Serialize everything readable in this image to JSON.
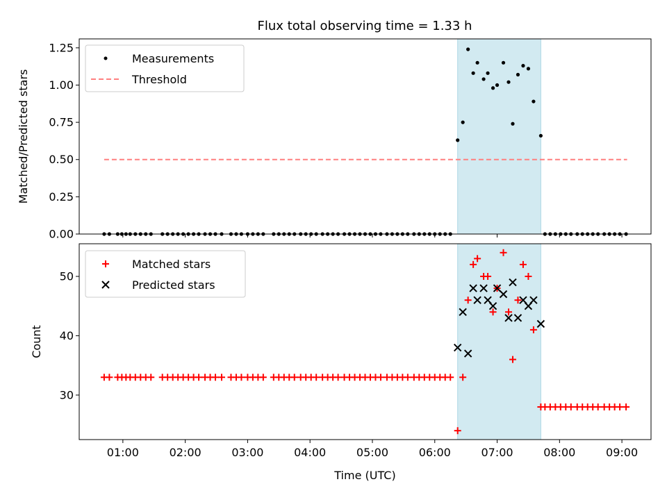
{
  "title": "Flux total observing time = 1.33 h",
  "colors": {
    "measurement": "#000000",
    "threshold": "#ff7f7f",
    "matched": "#ff0000",
    "predicted": "#000000",
    "highlight": "#add8e6"
  },
  "chart_data": [
    {
      "type": "scatter",
      "ylabel": "Matched/Predicted stars",
      "ylim": [
        0,
        1.31
      ],
      "yticks": [
        {
          "v": 0,
          "label": "0.00"
        },
        {
          "v": 0.25,
          "label": "0.25"
        },
        {
          "v": 0.5,
          "label": "0.50"
        },
        {
          "v": 0.75,
          "label": "0.75"
        },
        {
          "v": 1.0,
          "label": "1.00"
        },
        {
          "v": 1.25,
          "label": "1.25"
        }
      ],
      "legend": {
        "position": "top-left",
        "items": [
          {
            "label": "Measurements",
            "marker": "dot"
          },
          {
            "label": "Threshold",
            "marker": "dashed-line"
          }
        ]
      },
      "threshold": {
        "name": "Threshold",
        "value": 0.5,
        "x_start": "00:42",
        "x_end": "09:05"
      },
      "highlight_span": {
        "start": "06:22",
        "end": "07:42"
      },
      "series": [
        {
          "name": "Measurements",
          "points": [
            [
              "00:42",
              0
            ],
            [
              "00:47",
              0
            ],
            [
              "00:55",
              0
            ],
            [
              "00:59",
              0
            ],
            [
              "01:03",
              0
            ],
            [
              "01:07",
              0
            ],
            [
              "01:12",
              0
            ],
            [
              "01:17",
              0
            ],
            [
              "01:22",
              0
            ],
            [
              "01:27",
              0
            ],
            [
              "01:38",
              0
            ],
            [
              "01:43",
              0
            ],
            [
              "01:48",
              0
            ],
            [
              "01:53",
              0
            ],
            [
              "01:58",
              0
            ],
            [
              "02:03",
              0
            ],
            [
              "02:08",
              0
            ],
            [
              "02:13",
              0
            ],
            [
              "02:19",
              0
            ],
            [
              "02:24",
              0
            ],
            [
              "02:29",
              0
            ],
            [
              "02:35",
              0
            ],
            [
              "02:44",
              0
            ],
            [
              "02:49",
              0
            ],
            [
              "02:54",
              0
            ],
            [
              "03:00",
              0
            ],
            [
              "03:05",
              0
            ],
            [
              "03:10",
              0
            ],
            [
              "03:15",
              0
            ],
            [
              "03:25",
              0
            ],
            [
              "03:30",
              0
            ],
            [
              "03:35",
              0
            ],
            [
              "03:40",
              0
            ],
            [
              "03:45",
              0
            ],
            [
              "03:51",
              0
            ],
            [
              "03:56",
              0
            ],
            [
              "04:01",
              0
            ],
            [
              "04:06",
              0
            ],
            [
              "04:12",
              0
            ],
            [
              "04:17",
              0
            ],
            [
              "04:22",
              0
            ],
            [
              "04:27",
              0
            ],
            [
              "04:33",
              0
            ],
            [
              "04:38",
              0
            ],
            [
              "04:43",
              0
            ],
            [
              "04:48",
              0
            ],
            [
              "04:53",
              0
            ],
            [
              "04:58",
              0
            ],
            [
              "05:03",
              0
            ],
            [
              "05:08",
              0
            ],
            [
              "05:14",
              0
            ],
            [
              "05:19",
              0
            ],
            [
              "05:24",
              0
            ],
            [
              "05:29",
              0
            ],
            [
              "05:34",
              0
            ],
            [
              "05:40",
              0
            ],
            [
              "05:45",
              0
            ],
            [
              "05:50",
              0
            ],
            [
              "05:55",
              0
            ],
            [
              "06:00",
              0
            ],
            [
              "06:05",
              0
            ],
            [
              "06:10",
              0
            ],
            [
              "06:15",
              0
            ],
            [
              "06:22",
              0.63
            ],
            [
              "06:27",
              0.75
            ],
            [
              "06:32",
              1.24
            ],
            [
              "06:37",
              1.08
            ],
            [
              "06:41",
              1.15
            ],
            [
              "06:47",
              1.04
            ],
            [
              "06:51",
              1.08
            ],
            [
              "06:56",
              0.98
            ],
            [
              "07:00",
              1.0
            ],
            [
              "07:06",
              1.15
            ],
            [
              "07:11",
              1.02
            ],
            [
              "07:15",
              0.74
            ],
            [
              "07:20",
              1.07
            ],
            [
              "07:25",
              1.13
            ],
            [
              "07:30",
              1.11
            ],
            [
              "07:35",
              0.89
            ],
            [
              "07:42",
              0.66
            ],
            [
              "07:46",
              0
            ],
            [
              "07:51",
              0
            ],
            [
              "07:56",
              0
            ],
            [
              "08:01",
              0
            ],
            [
              "08:06",
              0
            ],
            [
              "08:11",
              0
            ],
            [
              "08:17",
              0
            ],
            [
              "08:22",
              0
            ],
            [
              "08:27",
              0
            ],
            [
              "08:32",
              0
            ],
            [
              "08:37",
              0
            ],
            [
              "08:43",
              0
            ],
            [
              "08:48",
              0
            ],
            [
              "08:53",
              0
            ],
            [
              "08:58",
              0
            ],
            [
              "09:04",
              0
            ]
          ]
        }
      ]
    },
    {
      "type": "scatter",
      "ylabel": "Count",
      "xlabel": "Time (UTC)",
      "ylim": [
        22.5,
        55.5
      ],
      "yticks": [
        {
          "v": 30,
          "label": "30"
        },
        {
          "v": 40,
          "label": "40"
        },
        {
          "v": 50,
          "label": "50"
        }
      ],
      "xlim": [
        "00:18",
        "09:28"
      ],
      "xticks": [
        {
          "v": "01:00",
          "label": "01:00"
        },
        {
          "v": "02:00",
          "label": "02:00"
        },
        {
          "v": "03:00",
          "label": "03:00"
        },
        {
          "v": "04:00",
          "label": "04:00"
        },
        {
          "v": "05:00",
          "label": "05:00"
        },
        {
          "v": "06:00",
          "label": "06:00"
        },
        {
          "v": "07:00",
          "label": "07:00"
        },
        {
          "v": "08:00",
          "label": "08:00"
        },
        {
          "v": "09:00",
          "label": "09:00"
        }
      ],
      "legend": {
        "position": "top-left",
        "items": [
          {
            "label": "Matched stars",
            "marker": "plus"
          },
          {
            "label": "Predicted stars",
            "marker": "x"
          }
        ]
      },
      "highlight_span": {
        "start": "06:22",
        "end": "07:42"
      },
      "series": [
        {
          "name": "Matched stars",
          "points": [
            [
              "00:42",
              33
            ],
            [
              "00:47",
              33
            ],
            [
              "00:55",
              33
            ],
            [
              "00:59",
              33
            ],
            [
              "01:03",
              33
            ],
            [
              "01:07",
              33
            ],
            [
              "01:12",
              33
            ],
            [
              "01:17",
              33
            ],
            [
              "01:22",
              33
            ],
            [
              "01:27",
              33
            ],
            [
              "01:38",
              33
            ],
            [
              "01:43",
              33
            ],
            [
              "01:48",
              33
            ],
            [
              "01:53",
              33
            ],
            [
              "01:58",
              33
            ],
            [
              "02:03",
              33
            ],
            [
              "02:08",
              33
            ],
            [
              "02:13",
              33
            ],
            [
              "02:19",
              33
            ],
            [
              "02:24",
              33
            ],
            [
              "02:29",
              33
            ],
            [
              "02:35",
              33
            ],
            [
              "02:44",
              33
            ],
            [
              "02:49",
              33
            ],
            [
              "02:54",
              33
            ],
            [
              "03:00",
              33
            ],
            [
              "03:05",
              33
            ],
            [
              "03:10",
              33
            ],
            [
              "03:15",
              33
            ],
            [
              "03:25",
              33
            ],
            [
              "03:30",
              33
            ],
            [
              "03:35",
              33
            ],
            [
              "03:40",
              33
            ],
            [
              "03:45",
              33
            ],
            [
              "03:51",
              33
            ],
            [
              "03:56",
              33
            ],
            [
              "04:01",
              33
            ],
            [
              "04:06",
              33
            ],
            [
              "04:12",
              33
            ],
            [
              "04:17",
              33
            ],
            [
              "04:22",
              33
            ],
            [
              "04:27",
              33
            ],
            [
              "04:33",
              33
            ],
            [
              "04:38",
              33
            ],
            [
              "04:43",
              33
            ],
            [
              "04:48",
              33
            ],
            [
              "04:53",
              33
            ],
            [
              "04:58",
              33
            ],
            [
              "05:03",
              33
            ],
            [
              "05:08",
              33
            ],
            [
              "05:14",
              33
            ],
            [
              "05:19",
              33
            ],
            [
              "05:24",
              33
            ],
            [
              "05:29",
              33
            ],
            [
              "05:34",
              33
            ],
            [
              "05:40",
              33
            ],
            [
              "05:45",
              33
            ],
            [
              "05:50",
              33
            ],
            [
              "05:55",
              33
            ],
            [
              "06:00",
              33
            ],
            [
              "06:05",
              33
            ],
            [
              "06:10",
              33
            ],
            [
              "06:15",
              33
            ],
            [
              "06:22",
              24
            ],
            [
              "06:27",
              33
            ],
            [
              "06:32",
              46
            ],
            [
              "06:37",
              52
            ],
            [
              "06:41",
              53
            ],
            [
              "06:47",
              50
            ],
            [
              "06:51",
              50
            ],
            [
              "06:56",
              44
            ],
            [
              "07:00",
              48
            ],
            [
              "07:06",
              54
            ],
            [
              "07:11",
              44
            ],
            [
              "07:15",
              36
            ],
            [
              "07:20",
              46
            ],
            [
              "07:25",
              52
            ],
            [
              "07:30",
              50
            ],
            [
              "07:35",
              41
            ],
            [
              "07:42",
              28
            ],
            [
              "07:46",
              28
            ],
            [
              "07:51",
              28
            ],
            [
              "07:56",
              28
            ],
            [
              "08:01",
              28
            ],
            [
              "08:06",
              28
            ],
            [
              "08:11",
              28
            ],
            [
              "08:17",
              28
            ],
            [
              "08:22",
              28
            ],
            [
              "08:27",
              28
            ],
            [
              "08:32",
              28
            ],
            [
              "08:37",
              28
            ],
            [
              "08:43",
              28
            ],
            [
              "08:48",
              28
            ],
            [
              "08:53",
              28
            ],
            [
              "08:58",
              28
            ],
            [
              "09:04",
              28
            ]
          ]
        },
        {
          "name": "Predicted stars",
          "points": [
            [
              "06:22",
              38
            ],
            [
              "06:27",
              44
            ],
            [
              "06:32",
              37
            ],
            [
              "06:37",
              48
            ],
            [
              "06:41",
              46
            ],
            [
              "06:47",
              48
            ],
            [
              "06:51",
              46
            ],
            [
              "06:56",
              45
            ],
            [
              "07:00",
              48
            ],
            [
              "07:06",
              47
            ],
            [
              "07:11",
              43
            ],
            [
              "07:15",
              49
            ],
            [
              "07:20",
              43
            ],
            [
              "07:25",
              46
            ],
            [
              "07:30",
              45
            ],
            [
              "07:35",
              46
            ],
            [
              "07:42",
              42
            ]
          ]
        }
      ]
    }
  ]
}
